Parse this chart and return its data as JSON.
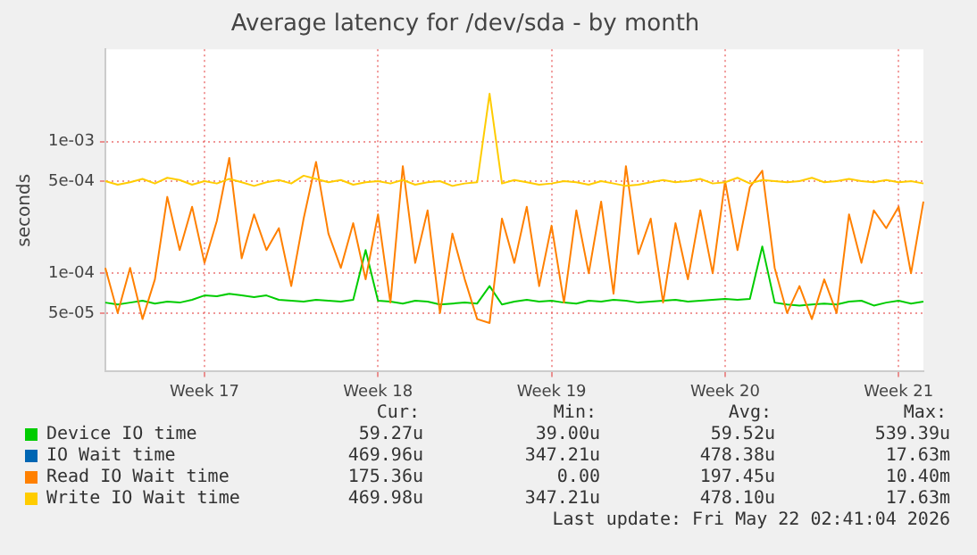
{
  "chart_data": {
    "type": "line",
    "title": "Average latency for /dev/sda - by month",
    "ylabel": "seconds",
    "log": "y",
    "grid": true,
    "legend": "bottom",
    "marker": "none",
    "line_style": "solid",
    "categories": [
      null,
      null,
      null,
      null,
      null,
      null,
      null,
      null,
      "Week 17",
      null,
      null,
      null,
      null,
      null,
      null,
      null,
      null,
      null,
      null,
      null,
      null,
      null,
      "Week 18",
      null,
      null,
      null,
      null,
      null,
      null,
      null,
      null,
      null,
      null,
      null,
      null,
      null,
      "Week 19",
      null,
      null,
      null,
      null,
      null,
      null,
      null,
      null,
      null,
      null,
      null,
      null,
      null,
      "Week 20",
      null,
      null,
      null,
      null,
      null,
      null,
      null,
      null,
      null,
      null,
      null,
      null,
      null,
      "Week 21",
      null,
      null
    ],
    "ylim": [
      1.8e-05,
      0.005
    ],
    "yticks": [
      {
        "value": 5e-05,
        "label": "5e-05"
      },
      {
        "value": 0.0001,
        "label": "1e-04"
      },
      {
        "value": 0.0005,
        "label": "5e-04"
      },
      {
        "value": 0.001,
        "label": "1e-03"
      }
    ],
    "series": [
      {
        "name": "Device IO time",
        "color": "#00cc00",
        "values": [
          6e-05,
          5.8e-05,
          6e-05,
          6.2e-05,
          5.9e-05,
          6.1e-05,
          6e-05,
          6.3e-05,
          6.8e-05,
          6.7e-05,
          7e-05,
          6.8e-05,
          6.6e-05,
          6.8e-05,
          6.3e-05,
          6.2e-05,
          6.1e-05,
          6.3e-05,
          6.2e-05,
          6.1e-05,
          6.3e-05,
          0.00015,
          6.2e-05,
          6.1e-05,
          5.9e-05,
          6.2e-05,
          6.1e-05,
          5.8e-05,
          5.9e-05,
          6e-05,
          5.9e-05,
          8e-05,
          5.8e-05,
          6.1e-05,
          6.3e-05,
          6.1e-05,
          6.2e-05,
          6e-05,
          5.9e-05,
          6.2e-05,
          6.1e-05,
          6.3e-05,
          6.2e-05,
          6e-05,
          6.1e-05,
          6.2e-05,
          6.3e-05,
          6.1e-05,
          6.2e-05,
          6.3e-05,
          6.4e-05,
          6.3e-05,
          6.4e-05,
          0.00016,
          6e-05,
          5.8e-05,
          5.7e-05,
          5.8e-05,
          5.9e-05,
          5.8e-05,
          6.1e-05,
          6.2e-05,
          5.7e-05,
          6e-05,
          6.2e-05,
          5.9e-05,
          6.1e-05
        ]
      },
      {
        "name": "IO Wait time",
        "color": "#0066b3",
        "values": [
          null,
          null,
          null,
          null,
          null,
          null,
          null,
          null,
          null,
          null,
          null,
          null,
          null,
          null,
          null,
          null,
          null,
          null,
          null,
          null,
          null,
          null,
          null,
          null,
          null,
          null,
          null,
          null,
          null,
          null,
          null,
          null,
          null,
          null,
          null,
          null,
          null,
          null,
          null,
          null,
          null,
          null,
          null,
          null,
          null,
          null,
          null,
          null,
          null,
          null,
          null,
          null,
          null,
          null,
          null,
          null,
          null,
          null,
          null,
          null,
          null,
          null,
          null,
          null,
          null,
          null,
          null
        ]
      },
      {
        "name": "Read IO Wait time",
        "color": "#ff8000",
        "values": [
          0.00011,
          5e-05,
          0.00011,
          4.5e-05,
          9e-05,
          0.00038,
          0.00015,
          0.00032,
          0.00012,
          0.00025,
          0.00075,
          0.00013,
          0.00028,
          0.00015,
          0.00022,
          8e-05,
          0.00026,
          0.0007,
          0.0002,
          0.00011,
          0.00024,
          9e-05,
          0.00028,
          6e-05,
          0.00065,
          0.00012,
          0.0003,
          5e-05,
          0.0002,
          9e-05,
          4.5e-05,
          4.2e-05,
          0.00026,
          0.00012,
          0.00032,
          8e-05,
          0.00023,
          6e-05,
          0.0003,
          0.0001,
          0.00035,
          7e-05,
          0.00065,
          0.00014,
          0.00026,
          6e-05,
          0.00024,
          9e-05,
          0.0003,
          0.0001,
          0.0005,
          0.00015,
          0.00045,
          0.0006,
          0.00011,
          5e-05,
          8e-05,
          4.5e-05,
          9e-05,
          5e-05,
          0.00028,
          0.00012,
          0.0003,
          0.00022,
          0.00032,
          0.0001,
          0.00035
        ]
      },
      {
        "name": "Write IO Wait time",
        "color": "#ffcc00",
        "values": [
          0.0005,
          0.00047,
          0.00049,
          0.00052,
          0.00048,
          0.00053,
          0.00051,
          0.00047,
          0.0005,
          0.00048,
          0.00052,
          0.00049,
          0.00046,
          0.00049,
          0.00051,
          0.00048,
          0.00055,
          0.00052,
          0.00049,
          0.00051,
          0.00047,
          0.00049,
          0.0005,
          0.00048,
          0.00051,
          0.00047,
          0.00049,
          0.0005,
          0.00046,
          0.00048,
          0.00049,
          0.0023,
          0.00048,
          0.00051,
          0.00049,
          0.00047,
          0.00048,
          0.0005,
          0.00049,
          0.00047,
          0.0005,
          0.00048,
          0.00046,
          0.00047,
          0.00049,
          0.00051,
          0.00049,
          0.0005,
          0.00052,
          0.00048,
          0.00049,
          0.00053,
          0.00048,
          0.00051,
          0.0005,
          0.00049,
          0.0005,
          0.00053,
          0.00049,
          0.0005,
          0.00052,
          0.0005,
          0.00049,
          0.00051,
          0.00049,
          0.0005,
          0.00048
        ]
      }
    ],
    "annotations": [
      "Cur:",
      "Min:",
      "Avg:",
      "Max:",
      "59.27u",
      "39.00u",
      "59.52u",
      "539.39u",
      "469.96u",
      "347.21u",
      "478.38u",
      "17.63m",
      "175.36u",
      "0.00",
      "197.45u",
      "10.40m",
      "469.98u",
      "347.21u",
      "478.10u",
      "17.63m",
      "Last update: Fri May 22 02:41:04 2026"
    ]
  }
}
